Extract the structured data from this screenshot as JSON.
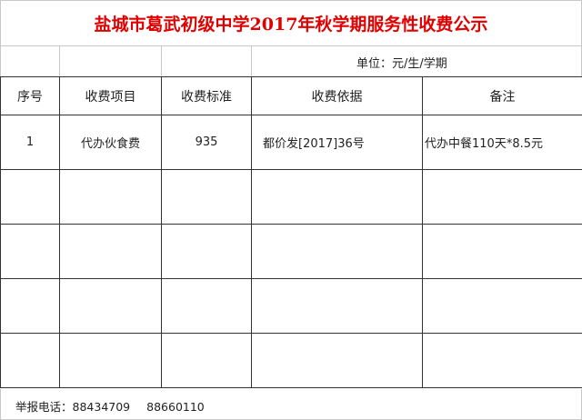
{
  "title": "盐城市葛武初级中学2017年秋学期服务性收费公示",
  "unit": "单位：元/生/学期",
  "headers": [
    "序号",
    "收费项目",
    "收费标准",
    "收费依据",
    "备注"
  ],
  "rows": [
    [
      "1",
      "代办伙食费",
      "935",
      "都价发[2017]36号",
      "代办中餐110天*8.5元"
    ],
    [
      "",
      "",
      "",
      "",
      ""
    ],
    [
      "",
      "",
      "",
      "",
      ""
    ],
    [
      "",
      "",
      "",
      "",
      ""
    ],
    [
      "",
      "",
      "",
      "",
      ""
    ]
  ],
  "footer": {
    "label": "举报电话：",
    "phone1": "88434709",
    "phone2": "88660110"
  },
  "colors": {
    "title": "#e00000"
  }
}
